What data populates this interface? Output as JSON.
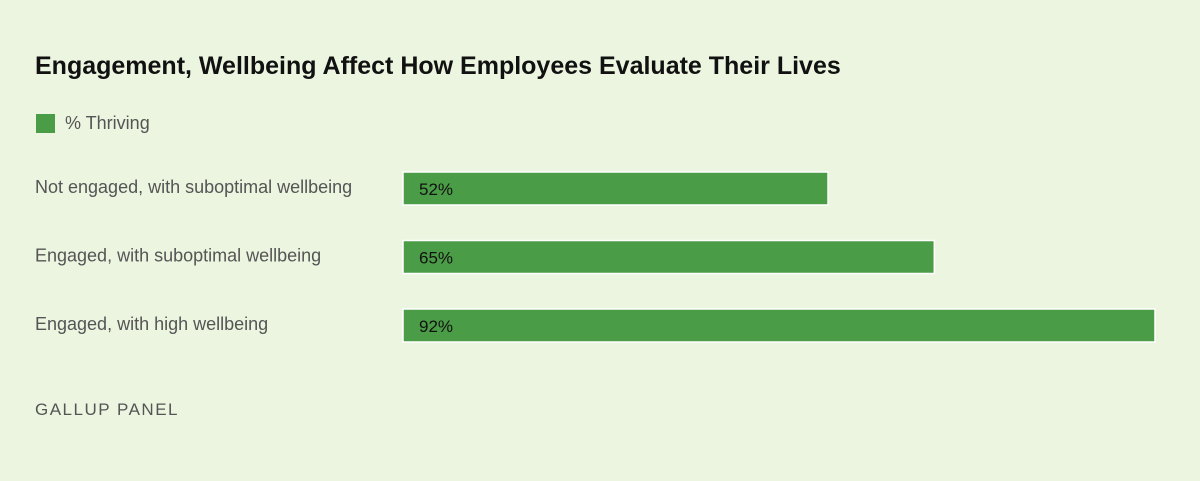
{
  "title": "Engagement, Wellbeing Affect How Employees Evaluate Their Lives",
  "legend": {
    "label": "% Thriving"
  },
  "source": "GALLUP PANEL",
  "colors": {
    "bar": "#4b9c46",
    "background": "#ebf5df"
  },
  "chart_data": {
    "type": "bar",
    "orientation": "horizontal",
    "title": "Engagement, Wellbeing Affect How Employees Evaluate Their Lives",
    "categories": [
      "Not engaged, with suboptimal wellbeing",
      "Engaged, with suboptimal wellbeing",
      "Engaged, with high wellbeing"
    ],
    "series": [
      {
        "name": "% Thriving",
        "values": [
          52,
          65,
          92
        ]
      }
    ],
    "data_labels": [
      "52%",
      "65%",
      "92%"
    ],
    "xlim": [
      0,
      92
    ],
    "grid": false,
    "legend_position": "top-left"
  }
}
